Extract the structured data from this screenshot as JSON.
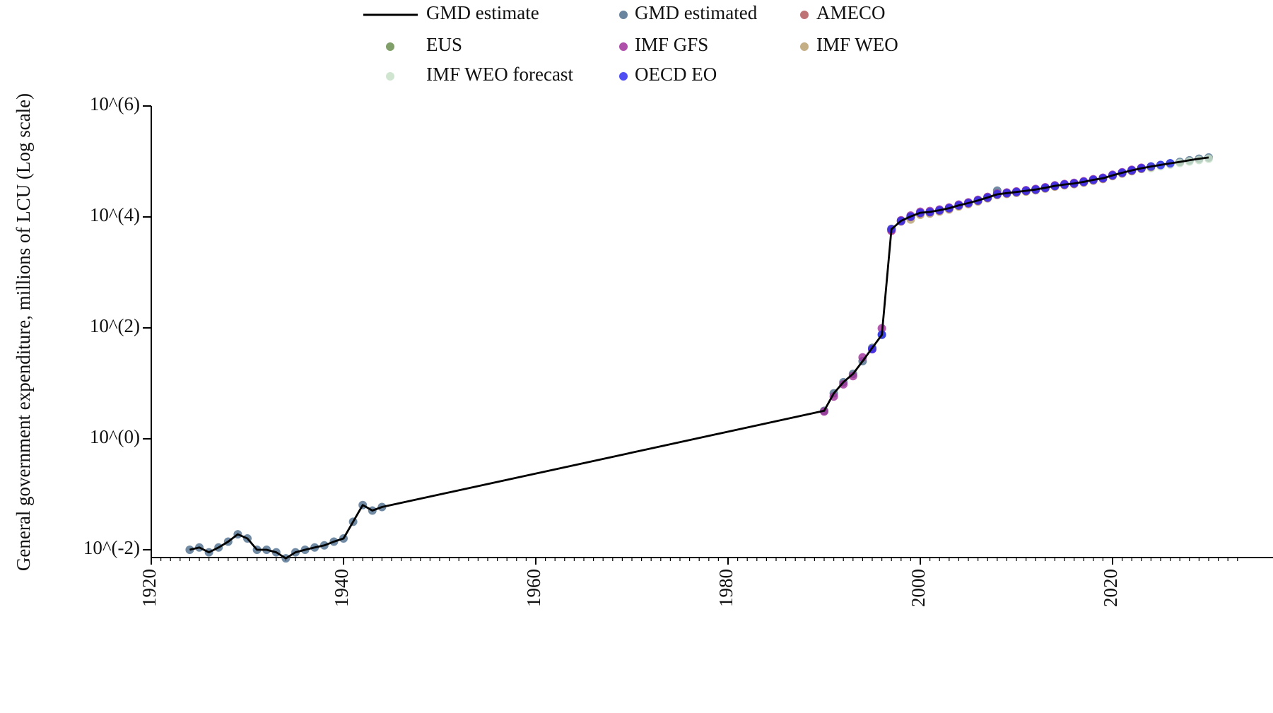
{
  "chart_data": {
    "type": "line",
    "title": "",
    "xlabel": "",
    "ylabel": "General government expenditure, millions of LCU (Log scale)",
    "xlim": [
      1920,
      2030
    ],
    "ylim_log10": [
      -2,
      6
    ],
    "y_scale": "log",
    "grid": false,
    "legend_position": "top",
    "x_ticks": [
      1920,
      1940,
      1960,
      1980,
      2000,
      2020
    ],
    "x_tick_labels": [
      "1920",
      "1940",
      "1960",
      "1980",
      "2000",
      "2020"
    ],
    "y_ticks_log10": [
      -2,
      0,
      2,
      4,
      6
    ],
    "y_tick_labels": [
      "10^(-2)",
      "10^(0)",
      "10^(2)",
      "10^(4)",
      "10^(6)"
    ],
    "legend": [
      {
        "label": "GMD estimate",
        "kind": "line",
        "color": "#000000"
      },
      {
        "label": "GMD estimated",
        "kind": "marker",
        "color": "#4e6e8e"
      },
      {
        "label": "AMECO",
        "kind": "marker",
        "color": "#b35c5c"
      },
      {
        "label": "EUS",
        "kind": "marker",
        "color": "#6b8e4e"
      },
      {
        "label": "IMF GFS",
        "kind": "marker",
        "color": "#a0309a"
      },
      {
        "label": "IMF WEO",
        "kind": "marker",
        "color": "#b8a070"
      },
      {
        "label": "IMF WEO forecast",
        "kind": "marker",
        "color": "#c8e0c8"
      },
      {
        "label": "OECD EO",
        "kind": "marker",
        "color": "#2f2ff0"
      }
    ],
    "series": [
      {
        "name": "GMD estimate",
        "kind": "line",
        "color": "#000000",
        "x": [
          1924,
          1925,
          1926,
          1927,
          1928,
          1929,
          1930,
          1931,
          1932,
          1933,
          1934,
          1935,
          1936,
          1937,
          1938,
          1939,
          1940,
          1941,
          1942,
          1943,
          1944,
          1990,
          1991,
          1992,
          1993,
          1994,
          1995,
          1996,
          1997,
          1998,
          1999,
          2000,
          2001,
          2002,
          2003,
          2004,
          2005,
          2006,
          2007,
          2008,
          2009,
          2010,
          2011,
          2012,
          2013,
          2014,
          2015,
          2016,
          2017,
          2018,
          2019,
          2020,
          2021,
          2022,
          2023,
          2024,
          2025,
          2026,
          2027,
          2028,
          2029,
          2030
        ],
        "y": [
          0.01,
          0.011,
          0.009,
          0.011,
          0.014,
          0.019,
          0.016,
          0.01,
          0.01,
          0.009,
          0.007,
          0.009,
          0.01,
          0.011,
          0.012,
          0.014,
          0.016,
          0.032,
          0.064,
          0.051,
          0.059,
          3.2,
          6.6,
          10.5,
          14.8,
          25.1,
          43.6,
          74.9,
          6000,
          8500,
          10200,
          11900,
          12300,
          13200,
          14400,
          16200,
          17800,
          19800,
          22400,
          25600,
          26900,
          28200,
          29600,
          31200,
          33500,
          36300,
          38400,
          40200,
          42900,
          46700,
          49800,
          56200,
          62500,
          69100,
          75500,
          81200,
          86500,
          92600,
          98300,
          105000,
          112000,
          118000
        ]
      },
      {
        "name": "GMD estimated",
        "kind": "marker",
        "color": "#4e6e8e",
        "x": [
          1924,
          1925,
          1926,
          1927,
          1928,
          1929,
          1930,
          1931,
          1932,
          1933,
          1934,
          1935,
          1936,
          1937,
          1938,
          1939,
          1940,
          1941,
          1942,
          1943,
          1944,
          1990,
          1991,
          1992,
          1993,
          1994,
          1995,
          1996,
          1997,
          1998,
          1999,
          2000,
          2001,
          2002,
          2003,
          2004,
          2005,
          2006,
          2007,
          2008,
          2009,
          2010,
          2011,
          2012,
          2013,
          2014,
          2015,
          2016,
          2017,
          2018,
          2019,
          2020,
          2021,
          2022,
          2023,
          2024,
          2025,
          2026,
          2027,
          2028,
          2029,
          2030
        ],
        "y": [
          0.01,
          0.011,
          0.009,
          0.011,
          0.014,
          0.019,
          0.016,
          0.01,
          0.01,
          0.009,
          0.007,
          0.009,
          0.01,
          0.011,
          0.012,
          0.014,
          0.016,
          0.032,
          0.064,
          0.051,
          0.059,
          3.2,
          6.6,
          10.5,
          14.8,
          25.1,
          43.6,
          74.9,
          6000,
          8500,
          10200,
          11900,
          12300,
          13200,
          14400,
          16200,
          17800,
          19800,
          22400,
          29800,
          26900,
          28200,
          29600,
          31200,
          33500,
          36300,
          38400,
          40200,
          42900,
          46700,
          49800,
          56200,
          62500,
          69100,
          75500,
          81200,
          86500,
          92600,
          98300,
          105000,
          112000,
          118000
        ]
      },
      {
        "name": "AMECO",
        "kind": "marker",
        "color": "#b35c5c",
        "x": [
          1997,
          1998,
          1999,
          2000,
          2001,
          2002,
          2003,
          2004,
          2005,
          2006,
          2007,
          2008,
          2009,
          2010,
          2011,
          2012,
          2013,
          2014,
          2015,
          2016,
          2017,
          2018,
          2019,
          2020,
          2021,
          2022,
          2023
        ],
        "y": [
          5800,
          8300,
          10000,
          11600,
          12100,
          13000,
          14200,
          16000,
          17600,
          19600,
          22100,
          25300,
          26600,
          27900,
          29300,
          30900,
          33100,
          35900,
          38000,
          39800,
          42500,
          46200,
          49300,
          55600,
          61900,
          68400,
          74800
        ]
      },
      {
        "name": "EUS",
        "kind": "marker",
        "color": "#6b8e4e",
        "x": [
          1999,
          2000,
          2001,
          2002,
          2003,
          2004,
          2005,
          2006,
          2007,
          2008,
          2009,
          2010,
          2011,
          2012,
          2013,
          2014,
          2015,
          2016,
          2017,
          2018,
          2019,
          2020,
          2021,
          2022
        ],
        "y": [
          10100,
          11800,
          12200,
          13100,
          14300,
          16100,
          17700,
          19700,
          22300,
          25500,
          26800,
          28100,
          29500,
          31100,
          33400,
          36200,
          38300,
          40100,
          42800,
          46600,
          49700,
          56000,
          62300,
          68900
        ]
      },
      {
        "name": "IMF GFS",
        "kind": "marker",
        "color": "#a0309a",
        "x": [
          1990,
          1991,
          1992,
          1993,
          1994,
          1995,
          1996,
          1997,
          1998,
          1999,
          2000,
          2001,
          2002,
          2003,
          2004,
          2005,
          2006,
          2007,
          2008,
          2009,
          2010,
          2011,
          2012,
          2013,
          2014,
          2015,
          2016,
          2017,
          2018,
          2019,
          2020,
          2021,
          2022,
          2023
        ],
        "y": [
          3.1,
          5.8,
          9.6,
          13.5,
          29.4,
          41.2,
          98.3,
          5600,
          8700,
          10600,
          12400,
          12800,
          13600,
          14800,
          16700,
          18300,
          20400,
          23000,
          26300,
          27600,
          28900,
          30400,
          32000,
          34300,
          37200,
          39300,
          41200,
          44000,
          47800,
          51000,
          57600,
          64000,
          70800,
          77200
        ]
      },
      {
        "name": "IMF WEO",
        "kind": "marker",
        "color": "#b8a070",
        "x": [
          1997,
          1998,
          1999,
          2000,
          2001,
          2002,
          2003,
          2004,
          2005,
          2006,
          2007,
          2008,
          2009,
          2010,
          2011,
          2012,
          2013,
          2014,
          2015,
          2016,
          2017,
          2018,
          2019,
          2020,
          2021,
          2022,
          2023,
          2024
        ],
        "y": [
          6100,
          8600,
          9000,
          10900,
          11500,
          12500,
          13600,
          15400,
          17000,
          19000,
          21600,
          24700,
          25900,
          27200,
          28600,
          30200,
          32400,
          35100,
          37200,
          38900,
          41500,
          45200,
          48200,
          54400,
          60500,
          66900,
          73200,
          79000
        ]
      },
      {
        "name": "IMF WEO forecast",
        "kind": "marker",
        "color": "#c8e0c8",
        "x": [
          2024,
          2025,
          2026,
          2027,
          2028,
          2029,
          2030
        ],
        "y": [
          76000,
          82000,
          88000,
          94000,
          100000,
          106000,
          112000
        ]
      },
      {
        "name": "OECD EO",
        "kind": "marker",
        "color": "#2f2ff0",
        "x": [
          1995,
          1996,
          1997,
          1998,
          1999,
          2000,
          2001,
          2002,
          2003,
          2004,
          2005,
          2006,
          2007,
          2008,
          2009,
          2010,
          2011,
          2012,
          2013,
          2014,
          2015,
          2016,
          2017,
          2018,
          2019,
          2020,
          2021,
          2022,
          2023,
          2024,
          2025,
          2026
        ],
        "y": [
          41.5,
          75.6,
          6050,
          8450,
          10150,
          11850,
          12250,
          13150,
          14350,
          16150,
          17750,
          19750,
          22350,
          25550,
          26850,
          28150,
          29550,
          31150,
          33450,
          36250,
          38350,
          40150,
          42850,
          46650,
          49750,
          56150,
          62450,
          69050,
          75450,
          81150,
          86450,
          92550
        ]
      }
    ]
  }
}
